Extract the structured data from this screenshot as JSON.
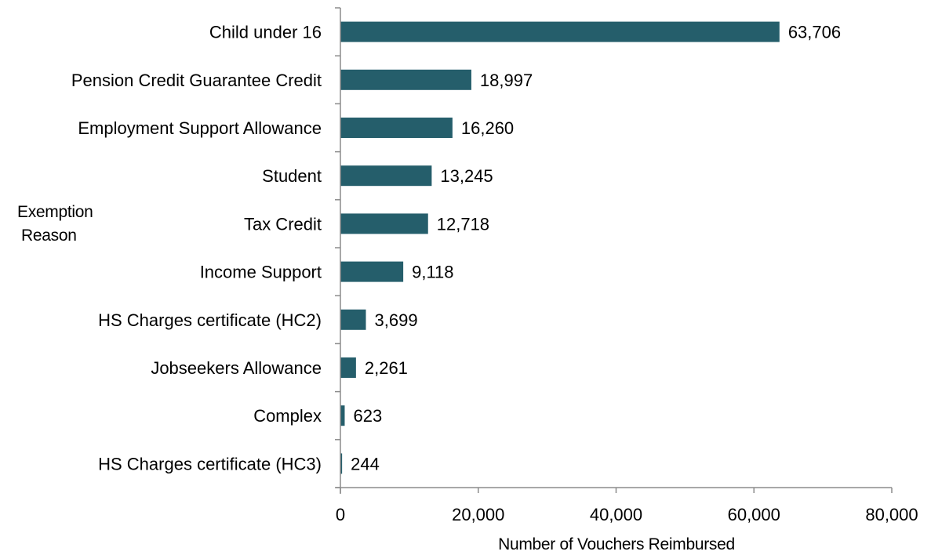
{
  "chart_data": {
    "type": "bar",
    "orientation": "horizontal",
    "categories": [
      "Child under 16",
      "Pension Credit Guarantee Credit",
      "Employment Support Allowance",
      "Student",
      "Tax Credit",
      "Income Support",
      "HS Charges certificate (HC2)",
      "Jobseekers Allowance",
      "Complex",
      "HS Charges certificate (HC3)"
    ],
    "values": [
      63706,
      18997,
      16260,
      13245,
      12718,
      9118,
      3699,
      2261,
      623,
      244
    ],
    "value_labels": [
      "63,706",
      "18,997",
      "16,260",
      "13,245",
      "12,718",
      "9,118",
      "3,699",
      "2,261",
      "623",
      "244"
    ],
    "xlabel": "Number of Vouchers Reimbursed",
    "ylabel_line1": "Exemption",
    "ylabel_line2": "Reason",
    "xlim": [
      0,
      80000
    ],
    "xticks": [
      0,
      20000,
      40000,
      60000,
      80000
    ],
    "xtick_labels": [
      "0",
      "20,000",
      "40,000",
      "60,000",
      "80,000"
    ],
    "grid": false,
    "bar_color": "#255e6b"
  }
}
